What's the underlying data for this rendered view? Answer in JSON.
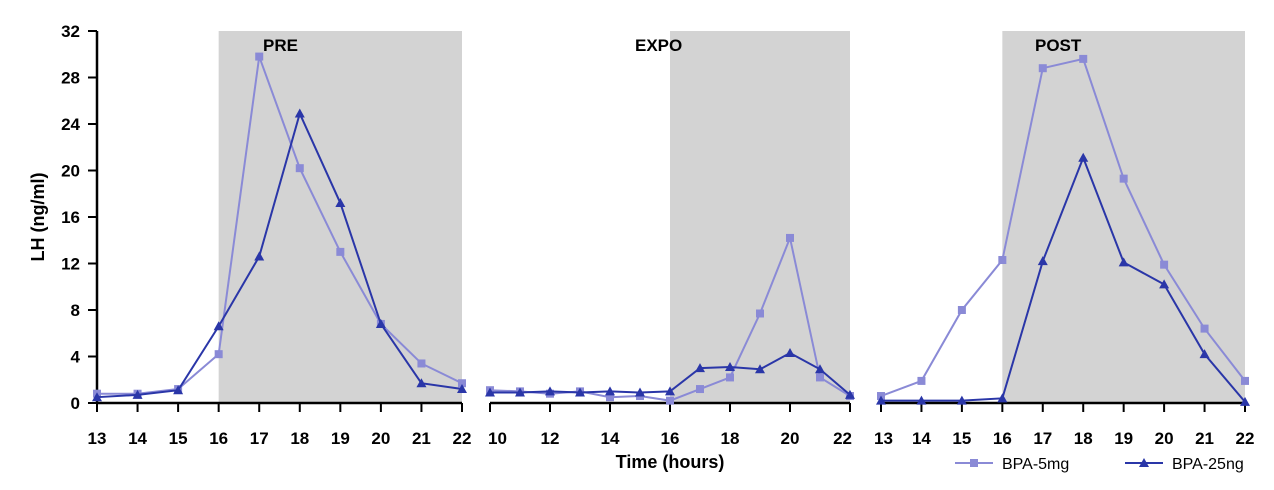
{
  "colors": {
    "series_light": "#8a8ad6",
    "series_dark": "#2a36a8",
    "shade": "#d3d3d3",
    "axis": "#000000"
  },
  "legend": {
    "items": [
      {
        "label": "BPA-5mg",
        "marker": "square",
        "color": "#8a8ad6"
      },
      {
        "label": "BPA-25ng",
        "marker": "triangle",
        "color": "#2a36a8"
      }
    ],
    "placement": "bottom-right"
  },
  "chart_data": [
    {
      "type": "line",
      "title": "PRE",
      "ylabel": "LH (ng/ml)",
      "xlabel": "",
      "xlim": [
        13,
        22
      ],
      "x_ticks": [
        13,
        14,
        15,
        16,
        17,
        18,
        19,
        20,
        21,
        22
      ],
      "ylim": [
        0,
        32
      ],
      "y_ticks": [
        0,
        4,
        8,
        12,
        16,
        20,
        24,
        28,
        32
      ],
      "shaded_region": [
        16,
        22
      ],
      "series": [
        {
          "name": "BPA-5mg",
          "marker": "square",
          "x": [
            13,
            14,
            15,
            16,
            17,
            18,
            19,
            20,
            21,
            22
          ],
          "y": [
            0.8,
            0.8,
            1.2,
            4.2,
            29.8,
            20.2,
            13.0,
            6.8,
            3.4,
            1.7
          ]
        },
        {
          "name": "BPA-25ng",
          "marker": "triangle",
          "x": [
            13,
            14,
            15,
            16,
            17,
            18,
            19,
            20,
            21,
            22
          ],
          "y": [
            0.5,
            0.7,
            1.1,
            6.6,
            12.6,
            24.9,
            17.2,
            6.8,
            1.7,
            1.2
          ]
        }
      ]
    },
    {
      "type": "line",
      "title": "EXPO",
      "xlabel": "Time (hours)",
      "ylabel": "",
      "xlim": [
        10,
        22
      ],
      "x_ticks": [
        10,
        12,
        14,
        16,
        18,
        20,
        22
      ],
      "ylim": [
        0,
        32
      ],
      "shaded_region": [
        16,
        22
      ],
      "series": [
        {
          "name": "BPA-5mg",
          "marker": "square",
          "x": [
            10,
            11,
            12,
            13,
            14,
            15,
            16,
            17,
            18,
            19,
            20,
            21,
            22
          ],
          "y": [
            1.1,
            1.0,
            0.8,
            1.0,
            0.5,
            0.6,
            0.2,
            1.2,
            2.2,
            7.7,
            14.2,
            2.2,
            0.6
          ]
        },
        {
          "name": "BPA-25ng",
          "marker": "triangle",
          "x": [
            10,
            11,
            12,
            13,
            14,
            15,
            16,
            17,
            18,
            19,
            20,
            21,
            22
          ],
          "y": [
            0.9,
            0.9,
            1.0,
            0.9,
            1.0,
            0.9,
            1.0,
            3.0,
            3.1,
            2.9,
            4.3,
            2.9,
            0.7
          ]
        }
      ]
    },
    {
      "type": "line",
      "title": "POST",
      "xlabel": "",
      "ylabel": "",
      "xlim": [
        13,
        22
      ],
      "x_ticks": [
        13,
        14,
        15,
        16,
        17,
        18,
        19,
        20,
        21,
        22
      ],
      "ylim": [
        0,
        32
      ],
      "shaded_region": [
        16,
        22
      ],
      "series": [
        {
          "name": "BPA-5mg",
          "marker": "square",
          "x": [
            13,
            14,
            15,
            16,
            17,
            18,
            19,
            20,
            21,
            22
          ],
          "y": [
            0.6,
            1.9,
            8.0,
            12.3,
            28.8,
            29.6,
            19.3,
            11.9,
            6.4,
            1.9
          ]
        },
        {
          "name": "BPA-25ng",
          "marker": "triangle",
          "x": [
            13,
            14,
            15,
            16,
            17,
            18,
            19,
            20,
            21,
            22
          ],
          "y": [
            0.2,
            0.2,
            0.2,
            0.4,
            12.2,
            21.1,
            12.1,
            10.2,
            4.2,
            0.1
          ]
        }
      ]
    }
  ]
}
